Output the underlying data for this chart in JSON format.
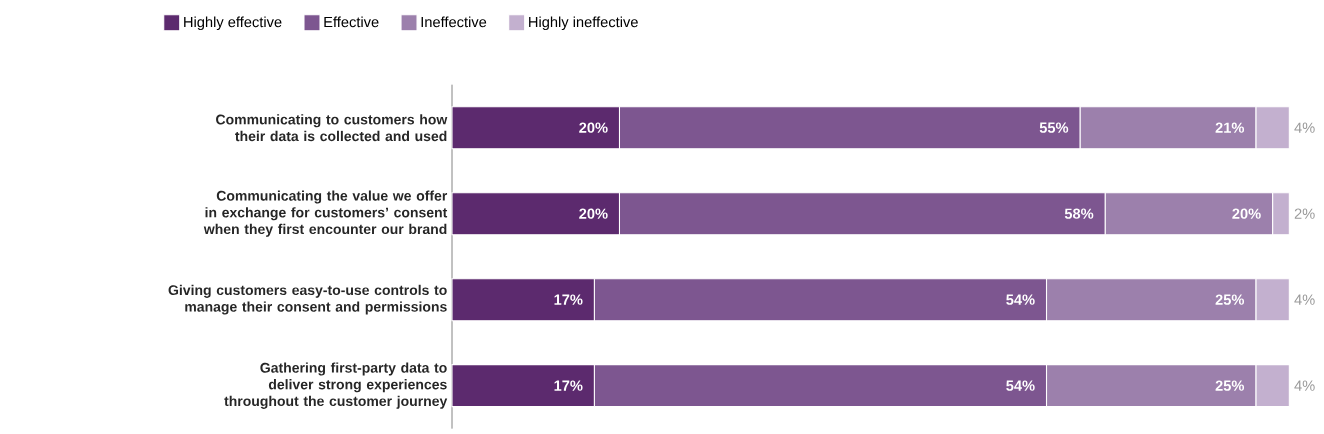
{
  "chart_data": {
    "type": "bar",
    "orientation": "horizontal",
    "stacked": true,
    "legend": "top",
    "tick_labels": "y",
    "categories": [
      "Communicating to customers how their data is collected and used",
      "Communicating the value we offer in exchange for customers’ consent when they first encounter our brand",
      "Giving customers easy-to-use controls to manage their consent and permissions",
      "Gathering first-party data to deliver strong experiences throughout the customer journey"
    ],
    "series": [
      {
        "name": "Highly effective",
        "color": "#5c2a6e",
        "values": [
          20,
          20,
          17,
          17
        ],
        "value_labels": [
          "20%",
          "20%",
          "17%",
          "17%"
        ]
      },
      {
        "name": "Effective",
        "color": "#7d5690",
        "values": [
          55,
          58,
          54,
          54
        ],
        "value_labels": [
          "55%",
          "58%",
          "54%",
          "54%"
        ]
      },
      {
        "name": "Ineffective",
        "color": "#9c80ac",
        "values": [
          21,
          20,
          25,
          25
        ],
        "value_labels": [
          "21%",
          "20%",
          "25%",
          "25%"
        ]
      },
      {
        "name": "Highly ineffective",
        "color": "#c3b0cf",
        "values": [
          4,
          2,
          4,
          4
        ],
        "value_labels": [
          "4%",
          "2%",
          "4%",
          "4%"
        ]
      }
    ]
  }
}
